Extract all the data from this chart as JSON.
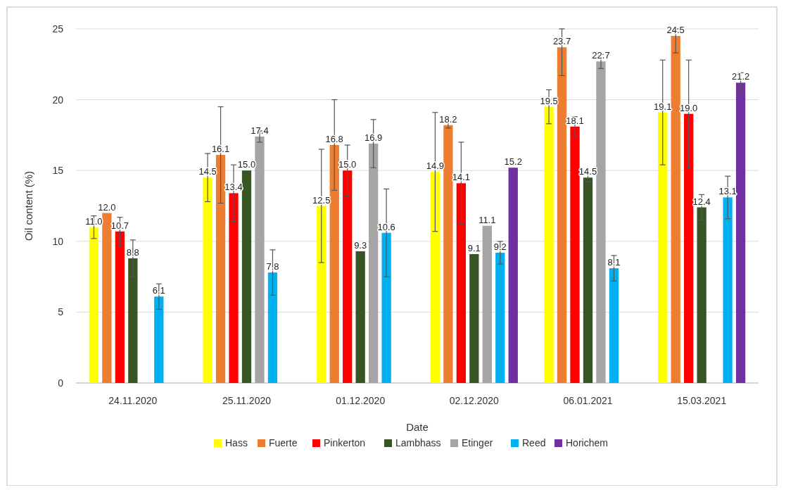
{
  "chart_data": {
    "type": "bar",
    "xlabel": "Date",
    "ylabel": "Oil content (%)",
    "categories": [
      "24.11.2020",
      "25.11.2020",
      "01.12.2020",
      "02.12.2020",
      "06.01.2021",
      "15.03.2021"
    ],
    "series": [
      {
        "name": "Hass",
        "color": "#ffff00",
        "values": [
          11.0,
          14.5,
          12.5,
          14.9,
          19.5,
          19.1
        ],
        "errors": [
          0.8,
          1.7,
          4.0,
          4.2,
          1.2,
          3.7
        ],
        "value_labels": [
          "11.0",
          "14.5",
          "12.5",
          "14.9",
          "19.5",
          "19.1"
        ]
      },
      {
        "name": "Fuerte",
        "color": "#ed7d31",
        "values": [
          12.0,
          16.1,
          16.8,
          18.2,
          23.7,
          24.5
        ],
        "errors": [
          null,
          3.4,
          3.2,
          0.2,
          [
            21.7,
            25.0
          ],
          [
            23.3,
            25.0
          ]
        ],
        "value_labels": [
          "12.0",
          "16.1",
          "16.8",
          "18.2",
          "23.7",
          "24.5"
        ]
      },
      {
        "name": "Pinkerton",
        "color": "#ff0000",
        "values": [
          10.7,
          13.4,
          15.0,
          14.1,
          18.1,
          19.0
        ],
        "errors": [
          1.0,
          2.0,
          1.8,
          2.9,
          0.7,
          3.8
        ],
        "value_labels": [
          "10.7",
          "13.4",
          "15.0",
          "14.1",
          "18.1",
          "19.0"
        ]
      },
      {
        "name": "Lambhass",
        "color": "#375623",
        "values": [
          8.8,
          15.0,
          9.3,
          9.1,
          14.5,
          12.4
        ],
        "errors": [
          1.3,
          null,
          null,
          null,
          0.3,
          0.9
        ],
        "value_labels": [
          "8.8",
          "15.0",
          "9.3",
          "9.1",
          "14.5",
          "12.4"
        ]
      },
      {
        "name": "Etinger",
        "color": "#a5a5a5",
        "values": [
          null,
          17.4,
          16.9,
          11.1,
          22.7,
          null
        ],
        "errors": [
          null,
          0.4,
          1.7,
          null,
          0.5,
          null
        ],
        "value_labels": [
          null,
          "17.4",
          "16.9",
          "11.1",
          "22.7",
          null
        ]
      },
      {
        "name": "Reed",
        "color": "#00b0f0",
        "values": [
          6.1,
          7.8,
          10.6,
          9.2,
          8.1,
          13.1
        ],
        "errors": [
          0.9,
          1.6,
          3.1,
          0.8,
          0.9,
          1.5
        ],
        "value_labels": [
          "6.1",
          "7.8",
          "10.6",
          "9.2",
          "8.1",
          "13.1"
        ]
      },
      {
        "name": "Horichem",
        "color": "#7030a0",
        "values": [
          null,
          null,
          null,
          15.2,
          null,
          21.2
        ],
        "errors": [
          null,
          null,
          null,
          null,
          null,
          0.7
        ],
        "value_labels": [
          null,
          null,
          null,
          "15.2",
          null,
          "21.2"
        ]
      }
    ],
    "ylim": [
      0,
      25
    ],
    "yticks": [
      0,
      5,
      10,
      15,
      20,
      25
    ],
    "grid": "y",
    "legend": "bottom"
  }
}
